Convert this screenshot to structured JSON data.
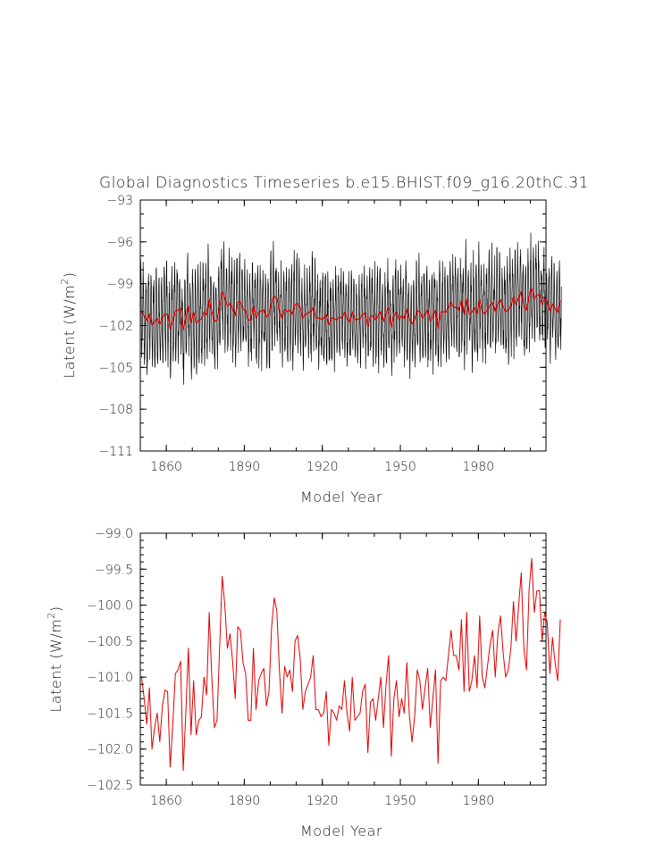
{
  "figure_title": "Global Diagnostics Timeseries b.e15.BHIST.f09_g16.20thC.31",
  "series_colors": {
    "monthly": "#000000",
    "annual": "#e00000"
  },
  "chart_data": [
    {
      "type": "line",
      "title": "Global Diagnostics Timeseries b.e15.BHIST.f09_g16.20thC.31",
      "xlabel": "Model Year",
      "ylabel_main": "Latent (W/m",
      "ylabel_sup": "2",
      "ylabel_close": ")",
      "xlim": [
        1850,
        2006
      ],
      "ylim": [
        -111,
        -93
      ],
      "x_ticks": [
        1860,
        1890,
        1920,
        1950,
        1980
      ],
      "x_tick_labels": [
        "1860",
        "1890",
        "1920",
        "1950",
        "1980"
      ],
      "y_ticks": [
        -111,
        -108,
        -105,
        -102,
        -99,
        -96,
        -93
      ],
      "y_tick_labels": [
        "−111",
        "−108",
        "−105",
        "−102",
        "−99",
        "−96",
        "−93"
      ],
      "series": [
        {
          "name": "monthly",
          "color": "#000000",
          "monthly_from_annual": true,
          "seasonal_amplitude": 2.9,
          "noise": 1.1
        },
        {
          "name": "annual",
          "color": "#e00000",
          "uses_annual": true
        }
      ]
    },
    {
      "type": "line",
      "xlabel": "Model Year",
      "ylabel_main": "Latent (W/m",
      "ylabel_sup": "2",
      "ylabel_close": ")",
      "xlim": [
        1850,
        2006
      ],
      "ylim": [
        -102.5,
        -99.0
      ],
      "x_ticks": [
        1860,
        1890,
        1920,
        1950,
        1980
      ],
      "x_tick_labels": [
        "1860",
        "1890",
        "1920",
        "1950",
        "1980"
      ],
      "y_ticks": [
        -102.5,
        -102.0,
        -101.5,
        -101.0,
        -100.5,
        -100.0,
        -99.5,
        -99.0
      ],
      "y_tick_labels": [
        "−102.5",
        "−102.0",
        "−101.5",
        "−101.0",
        "−100.5",
        "−100.0",
        "−99.5",
        "−99.0"
      ],
      "series": [
        {
          "name": "annual",
          "color": "#e00000",
          "uses_annual": true
        }
      ]
    }
  ],
  "annual_x_start": 1850,
  "annual_values": [
    -101.0,
    -101.3,
    -101.65,
    -101.15,
    -102.0,
    -101.7,
    -101.5,
    -101.9,
    -101.4,
    -101.18,
    -101.2,
    -102.25,
    -101.65,
    -100.95,
    -100.9,
    -100.78,
    -102.3,
    -101.5,
    -100.6,
    -101.8,
    -101.05,
    -101.8,
    -101.6,
    -101.55,
    -101.0,
    -101.25,
    -100.1,
    -101.0,
    -101.7,
    -101.6,
    -100.6,
    -99.6,
    -100.0,
    -100.6,
    -100.4,
    -100.78,
    -101.3,
    -100.3,
    -100.35,
    -100.8,
    -100.95,
    -101.6,
    -101.6,
    -100.6,
    -101.45,
    -101.05,
    -100.95,
    -100.88,
    -101.4,
    -101.2,
    -100.3,
    -99.9,
    -100.08,
    -100.9,
    -101.5,
    -100.85,
    -101.0,
    -100.9,
    -101.2,
    -100.5,
    -100.42,
    -100.75,
    -101.45,
    -101.2,
    -101.1,
    -101.0,
    -100.7,
    -101.45,
    -101.45,
    -101.55,
    -101.5,
    -101.2,
    -101.95,
    -101.45,
    -101.5,
    -101.6,
    -101.4,
    -101.45,
    -101.05,
    -101.5,
    -101.75,
    -101.0,
    -101.6,
    -101.55,
    -101.5,
    -101.2,
    -101.1,
    -102.05,
    -101.35,
    -101.3,
    -101.6,
    -101.3,
    -101.0,
    -101.7,
    -101.1,
    -100.7,
    -102.1,
    -101.3,
    -101.05,
    -101.55,
    -101.3,
    -101.5,
    -100.8,
    -101.55,
    -101.9,
    -101.55,
    -100.9,
    -101.05,
    -101.45,
    -101.15,
    -100.88,
    -101.7,
    -101.3,
    -100.9,
    -102.2,
    -101.05,
    -101.0,
    -101.05,
    -100.7,
    -100.35,
    -100.7,
    -100.7,
    -100.9,
    -100.2,
    -101.2,
    -100.1,
    -101.2,
    -101.05,
    -100.7,
    -101.15,
    -100.15,
    -101.0,
    -101.15,
    -100.85,
    -100.55,
    -100.35,
    -101.0,
    -100.4,
    -100.15,
    -100.65,
    -101.0,
    -100.9,
    -100.6,
    -99.95,
    -100.5,
    -100.0,
    -99.55,
    -100.6,
    -100.9,
    -99.8,
    -99.35,
    -100.1,
    -99.8,
    -99.8,
    -100.5,
    -100.1,
    -100.25,
    -100.95,
    -100.45,
    -100.8,
    -101.05,
    -100.2
  ]
}
